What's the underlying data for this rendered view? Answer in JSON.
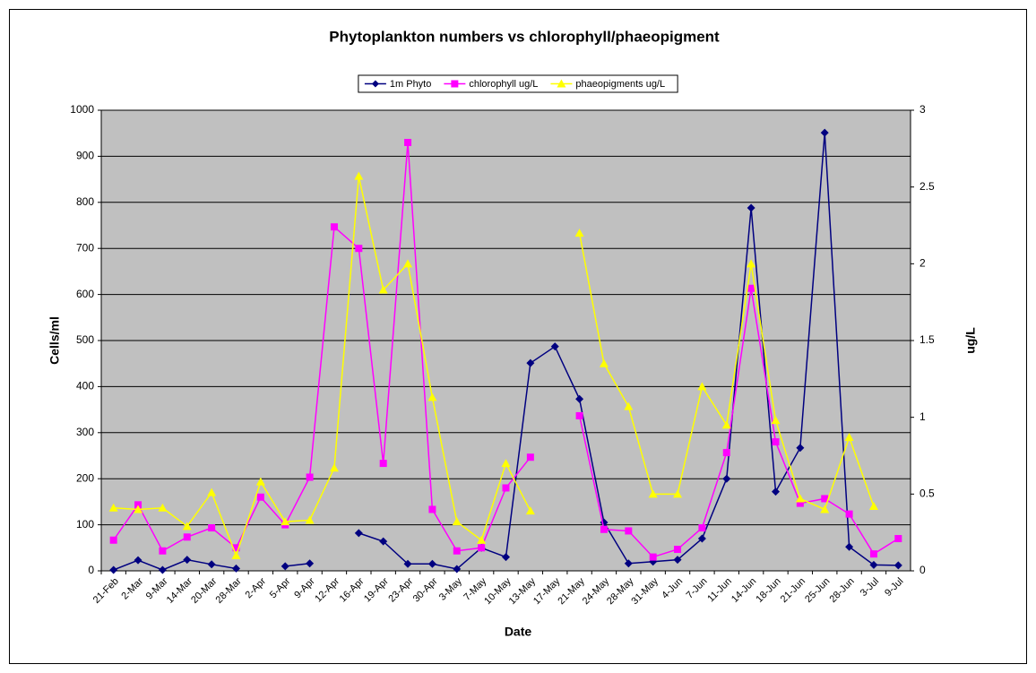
{
  "chart_data": {
    "type": "line",
    "title": "Phytoplankton numbers vs chlorophyll/phaeopigment",
    "x_label": "Date",
    "y_label": "Cells/ml",
    "y2_label": "ug/L",
    "categories": [
      "21-Feb",
      "2-Mar",
      "9-Mar",
      "14-Mar",
      "20-Mar",
      "28-Mar",
      "2-Apr",
      "5-Apr",
      "9-Apr",
      "12-Apr",
      "16-Apr",
      "19-Apr",
      "23-Apr",
      "30-Apr",
      "3-May",
      "7-May",
      "10-May",
      "13-May",
      "17-May",
      "21-May",
      "24-May",
      "28-May",
      "31-May",
      "4-Jun",
      "7-Jun",
      "11-Jun",
      "14-Jun",
      "18-Jun",
      "21-Jun",
      "25-Jun",
      "28-Jun",
      "3-Jul",
      "9-Jul"
    ],
    "ylim": [
      0,
      1000
    ],
    "yticks": [
      0,
      100,
      200,
      300,
      400,
      500,
      600,
      700,
      800,
      900,
      1000
    ],
    "y2lim": [
      0,
      3
    ],
    "y2ticks": [
      0,
      0.5,
      1,
      1.5,
      2,
      2.5,
      3
    ],
    "grid": true,
    "legend": "top",
    "plot_background": "#c0c0c0",
    "series": [
      {
        "name": "1m Phyto",
        "color": "#000080",
        "marker": "diamond",
        "axis": "y",
        "values": [
          2,
          23,
          2,
          24,
          14,
          5,
          null,
          10,
          16,
          null,
          82,
          64,
          15,
          15,
          4,
          50,
          30,
          451,
          487,
          373,
          105,
          16,
          20,
          24,
          70,
          200,
          788,
          172,
          267,
          951,
          52,
          13,
          12
        ]
      },
      {
        "name": "chlorophyll ug/L",
        "color": "#ff00ff",
        "marker": "square",
        "axis": "y2",
        "values": [
          0.2,
          0.43,
          0.13,
          0.22,
          0.28,
          0.15,
          0.48,
          0.3,
          0.61,
          2.24,
          2.1,
          0.7,
          2.79,
          0.4,
          0.13,
          0.15,
          0.54,
          0.74,
          null,
          1.01,
          0.27,
          0.26,
          0.09,
          0.14,
          0.28,
          0.77,
          1.84,
          0.84,
          0.44,
          0.47,
          0.37,
          0.11,
          0.21
        ]
      },
      {
        "name": "phaeopigments ug/L",
        "color": "#ffff00",
        "marker": "triangle",
        "axis": "y2",
        "values": [
          0.41,
          0.4,
          0.41,
          0.29,
          0.51,
          0.1,
          0.58,
          0.32,
          0.33,
          0.67,
          2.57,
          1.83,
          2.0,
          1.13,
          0.32,
          0.2,
          0.7,
          0.39,
          null,
          2.2,
          1.35,
          1.07,
          0.5,
          0.5,
          1.2,
          0.95,
          2.0,
          0.98,
          0.47,
          0.4,
          0.87,
          0.42,
          null
        ]
      }
    ]
  }
}
